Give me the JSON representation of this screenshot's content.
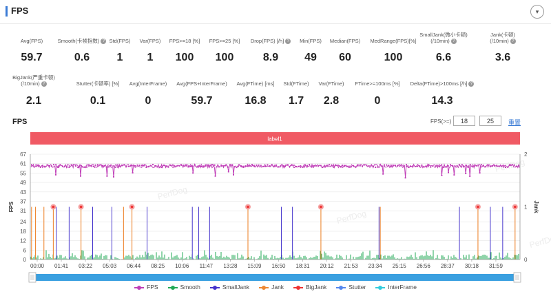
{
  "header": {
    "title": "FPS",
    "collapse_icon": "▾"
  },
  "metrics": [
    {
      "label": "Avg(FPS)",
      "value": "59.7",
      "help": false
    },
    {
      "label": "Smooth(卡帧指数)",
      "value": "0.6",
      "help": true
    },
    {
      "label": "Std(FPS)",
      "value": "1",
      "help": false
    },
    {
      "label": "Var(FPS)",
      "value": "1",
      "help": false
    },
    {
      "label": "FPS>=18 [%]",
      "value": "100",
      "help": false
    },
    {
      "label": "FPS>=25 [%]",
      "value": "100",
      "help": false
    },
    {
      "label": "Drop(FPS) [/h]",
      "value": "8.9",
      "help": true
    },
    {
      "label": "Min(FPS)",
      "value": "49",
      "help": false
    },
    {
      "label": "Median(FPS)",
      "value": "60",
      "help": false
    },
    {
      "label": "MedRange(FPS)[%]",
      "value": "100",
      "help": false
    },
    {
      "label": "SmallJank(微小卡顿)",
      "label2": "(/10min)",
      "value": "6.6",
      "help": true
    },
    {
      "label": "Jank(卡顿)",
      "label2": "(/10min)",
      "value": "3.6",
      "help": true
    },
    {
      "label": "BigJank(严重卡顿)",
      "label2": "(/10min)",
      "value": "2.1",
      "help": true
    },
    {
      "label": "Stutter(卡顿率) [%]",
      "value": "0.1",
      "help": false
    },
    {
      "label": "Avg(InterFrame)",
      "value": "0",
      "help": false
    },
    {
      "label": "Avg(FPS+InterFrame)",
      "value": "59.7",
      "help": false
    },
    {
      "label": "Avg(FTime) [ms]",
      "value": "16.8",
      "help": false
    },
    {
      "label": "Std(FTime)",
      "value": "1.7",
      "help": false
    },
    {
      "label": "Var(FTime)",
      "value": "2.8",
      "help": false
    },
    {
      "label": "FTime>=100ms [%]",
      "value": "0",
      "help": false
    },
    {
      "label": "Delta(FTime)>100ms [/h]",
      "value": "14.3",
      "help": true
    }
  ],
  "chart": {
    "title": "FPS",
    "threshold_label": "FPS(>=)",
    "threshold1": "18",
    "threshold2": "25",
    "reset_label": "重置",
    "band_label": "label1",
    "left_axis_label": "FPS",
    "right_axis_label": "Jank",
    "watermark": "PerfDog"
  },
  "chart_data": {
    "type": "line",
    "title": "FPS",
    "xlabel": "",
    "ylabel": "FPS",
    "y2label": "Jank",
    "ylim": [
      0,
      67
    ],
    "y2lim": [
      0,
      2
    ],
    "yticks": [
      0,
      6,
      12,
      18,
      24,
      31,
      37,
      43,
      49,
      55,
      61,
      67
    ],
    "y2ticks": [
      0,
      1,
      2
    ],
    "xlim_seconds": [
      0,
      1980
    ],
    "xticks": [
      "00:00",
      "01:41",
      "03:22",
      "05:03",
      "06:44",
      "08:25",
      "10:06",
      "11:47",
      "13:28",
      "15:09",
      "16:50",
      "18:31",
      "20:12",
      "21:53",
      "23:34",
      "25:15",
      "26:56",
      "28:37",
      "30:18",
      "31:59"
    ],
    "series": [
      {
        "name": "FPS",
        "color": "#c040b8",
        "typical": 60,
        "min": 49
      },
      {
        "name": "Smooth",
        "color": "#22aa55"
      },
      {
        "name": "SmallJank",
        "color": "#4433cc",
        "events_seconds": [
          105,
          157,
          252,
          330,
          472,
          655,
          681,
          725,
          1015,
          1060,
          1410,
          1735,
          1860,
          1910
        ]
      },
      {
        "name": "Jank",
        "color": "#ee8833",
        "events_seconds": [
          5,
          21,
          55,
          93,
          205,
          377,
          411,
          880,
          1175,
          1415,
          1810,
          1960
        ]
      },
      {
        "name": "BigJank",
        "color": "#ee3333",
        "events_seconds": [
          93,
          205,
          411,
          880,
          1175,
          1810,
          1960
        ]
      },
      {
        "name": "Stutter",
        "color": "#5588ee"
      },
      {
        "name": "InterFrame",
        "color": "#33ccdd"
      }
    ]
  }
}
